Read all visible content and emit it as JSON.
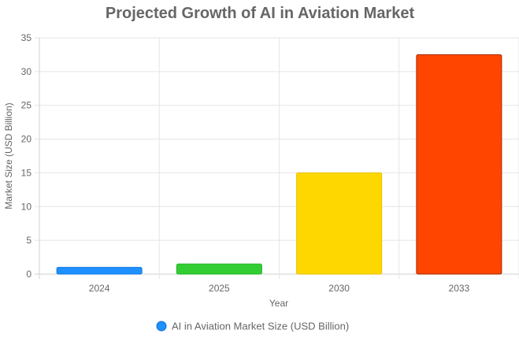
{
  "chart_data": {
    "type": "bar",
    "title": "Projected Growth of AI in Aviation Market",
    "xlabel": "Year",
    "ylabel": "Market Size (USD Billion)",
    "categories": [
      "2024",
      "2025",
      "2030",
      "2033"
    ],
    "series": [
      {
        "name": "AI in Aviation Market Size (USD Billion)",
        "values": [
          1.0,
          1.5,
          15.0,
          32.5
        ],
        "colors": [
          "#1E90FF",
          "#32CD32",
          "#FFD700",
          "#FF4500"
        ],
        "border_colors": [
          "#1a7be0",
          "#2ab52a",
          "#e6c200",
          "#a03000"
        ]
      }
    ],
    "ylim": [
      0,
      35
    ],
    "yticks": [
      "0",
      "5",
      "10",
      "15",
      "20",
      "25",
      "30",
      "35"
    ],
    "grid": true,
    "legend_position": "bottom",
    "legend_marker_color": "#1E90FF"
  }
}
